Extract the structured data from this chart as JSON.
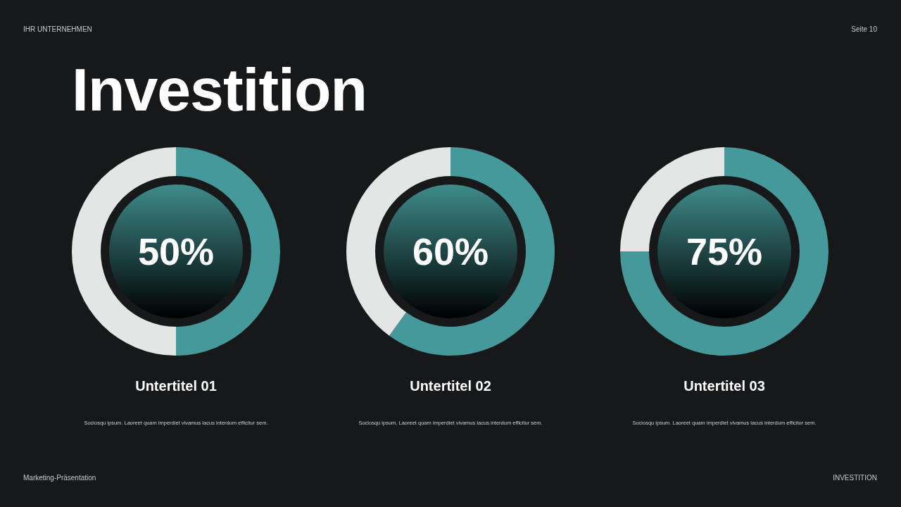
{
  "chart_data": [
    {
      "type": "donut",
      "title": "Untertitel 01",
      "subtitle": "Sociosqu ipsum. Laoreet quam imperdiet vivamus lacus interdum efficitur sem.",
      "categories": [
        null,
        null
      ],
      "values": [
        50,
        50
      ],
      "colors": [
        "#45999a",
        "#e4e6e6"
      ],
      "annotations": [
        "50%",
        "IHR UNTERNEHMEN",
        "Seite 10",
        "Investition",
        "Marketing-Präsentation",
        "INVESTITION"
      ]
    },
    {
      "type": "donut",
      "title": "Untertitel 02",
      "subtitle": "Sociosqu ipsum. Laoreet quam imperdiet vivamus lacus interdum efficitur sem.",
      "categories": [
        null,
        null
      ],
      "values": [
        60,
        40
      ],
      "colors": [
        "#45999a",
        "#e4e6e6"
      ],
      "annotations": [
        "60%"
      ]
    },
    {
      "type": "donut",
      "title": "Untertitel 03",
      "subtitle": "Sociosqu ipsum. Laoreet quam imperdiet vivamus lacus interdum efficitur sem.",
      "categories": [
        null,
        null
      ],
      "values": [
        75,
        25
      ],
      "colors": [
        "#45999a",
        "#e4e6e6"
      ],
      "annotations": [
        "75%"
      ]
    }
  ]
}
